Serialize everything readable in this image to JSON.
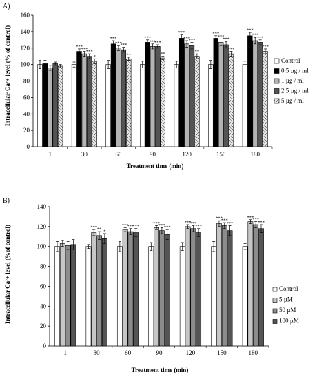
{
  "chart_data": [
    {
      "type": "bar",
      "panel_label": "A)",
      "title": "",
      "xlabel": "Treatment time (min)",
      "ylabel": "Intracellular Ca²+ level (% of control)",
      "ylim": [
        0,
        160
      ],
      "yticks": [
        0,
        20,
        40,
        60,
        80,
        100,
        120,
        140,
        160
      ],
      "grid": false,
      "legend_position": "right",
      "categories": [
        "1",
        "30",
        "60",
        "90",
        "120",
        "150",
        "180"
      ],
      "series": [
        {
          "name": "Control",
          "color": "#ffffff",
          "pattern": "none",
          "values": [
            100,
            100,
            100,
            100,
            100,
            100,
            100
          ],
          "errors": [
            5,
            3,
            5,
            4,
            4,
            5,
            4
          ],
          "annotations": [
            "",
            "",
            "",
            "",
            "",
            "",
            ""
          ]
        },
        {
          "name": "0.5 µg / ml",
          "color": "#000000",
          "pattern": "none",
          "values": [
            101,
            116,
            125,
            127,
            132,
            132,
            135
          ],
          "errors": [
            4,
            3,
            4,
            3,
            4,
            3,
            4
          ],
          "annotations": [
            "",
            "***",
            "***",
            "***",
            "***",
            "***",
            "***"
          ]
        },
        {
          "name": "1 µg / ml",
          "color": "#b4b4b4",
          "pattern": "none",
          "values": [
            96,
            113,
            120,
            122,
            125,
            127,
            129
          ],
          "errors": [
            3,
            3,
            3,
            3,
            4,
            4,
            4
          ],
          "annotations": [
            "",
            "***",
            "***",
            "***",
            "***",
            "***",
            "***"
          ]
        },
        {
          "name": "2.5 µg / ml",
          "color": "#555555",
          "pattern": "none",
          "values": [
            101,
            110,
            118,
            122,
            123,
            124,
            127
          ],
          "errors": [
            2,
            3,
            3,
            2,
            4,
            4,
            3
          ],
          "annotations": [
            "",
            "***",
            "***",
            "***",
            "***",
            "***",
            "***"
          ]
        },
        {
          "name": "5 µg / ml",
          "color": "#d9d9d9",
          "pattern": "speckle",
          "values": [
            98,
            104,
            107,
            108,
            110,
            113,
            116
          ],
          "errors": [
            2,
            3,
            2,
            2,
            3,
            3,
            3
          ],
          "annotations": [
            "",
            "*",
            "**",
            "**",
            "**",
            "***",
            "***"
          ]
        }
      ]
    },
    {
      "type": "bar",
      "panel_label": "B)",
      "title": "",
      "xlabel": "Treatment time (min)",
      "ylabel": "Intracellular Ca²+ level (%of control)",
      "ylim": [
        0,
        140
      ],
      "yticks": [
        0,
        20,
        40,
        60,
        80,
        100,
        120,
        140
      ],
      "grid": false,
      "legend_position": "right",
      "categories": [
        "1",
        "30",
        "60",
        "90",
        "120",
        "150",
        "180"
      ],
      "series": [
        {
          "name": "Control",
          "color": "#ffffff",
          "pattern": "none",
          "values": [
            100,
            100,
            100,
            100,
            100,
            100,
            100
          ],
          "errors": [
            5,
            2,
            5,
            4,
            4,
            5,
            3
          ],
          "annotations": [
            "",
            "",
            "",
            "",
            "",
            "",
            ""
          ]
        },
        {
          "name": "5 µM",
          "color": "#c6c6c6",
          "pattern": "none",
          "values": [
            103,
            114,
            117,
            119,
            120,
            123,
            125
          ],
          "errors": [
            3,
            3,
            2,
            2,
            2,
            3,
            2
          ],
          "annotations": [
            "",
            "***",
            "***",
            "***",
            "***",
            "***",
            "***"
          ]
        },
        {
          "name": "50 µM",
          "color": "#8c8c8c",
          "pattern": "none",
          "values": [
            101,
            111,
            115,
            116,
            118,
            121,
            122
          ],
          "errors": [
            4,
            4,
            3,
            3,
            3,
            3,
            3
          ],
          "annotations": [
            "",
            "**",
            "***",
            "***",
            "***",
            "***",
            "***"
          ]
        },
        {
          "name": "100 µM",
          "color": "#555555",
          "pattern": "none",
          "values": [
            102,
            108,
            114,
            112,
            114,
            116,
            118
          ],
          "errors": [
            5,
            5,
            4,
            5,
            4,
            5,
            4
          ],
          "annotations": [
            "",
            "*",
            "***",
            "***",
            "***",
            "***",
            "***"
          ]
        }
      ]
    }
  ]
}
